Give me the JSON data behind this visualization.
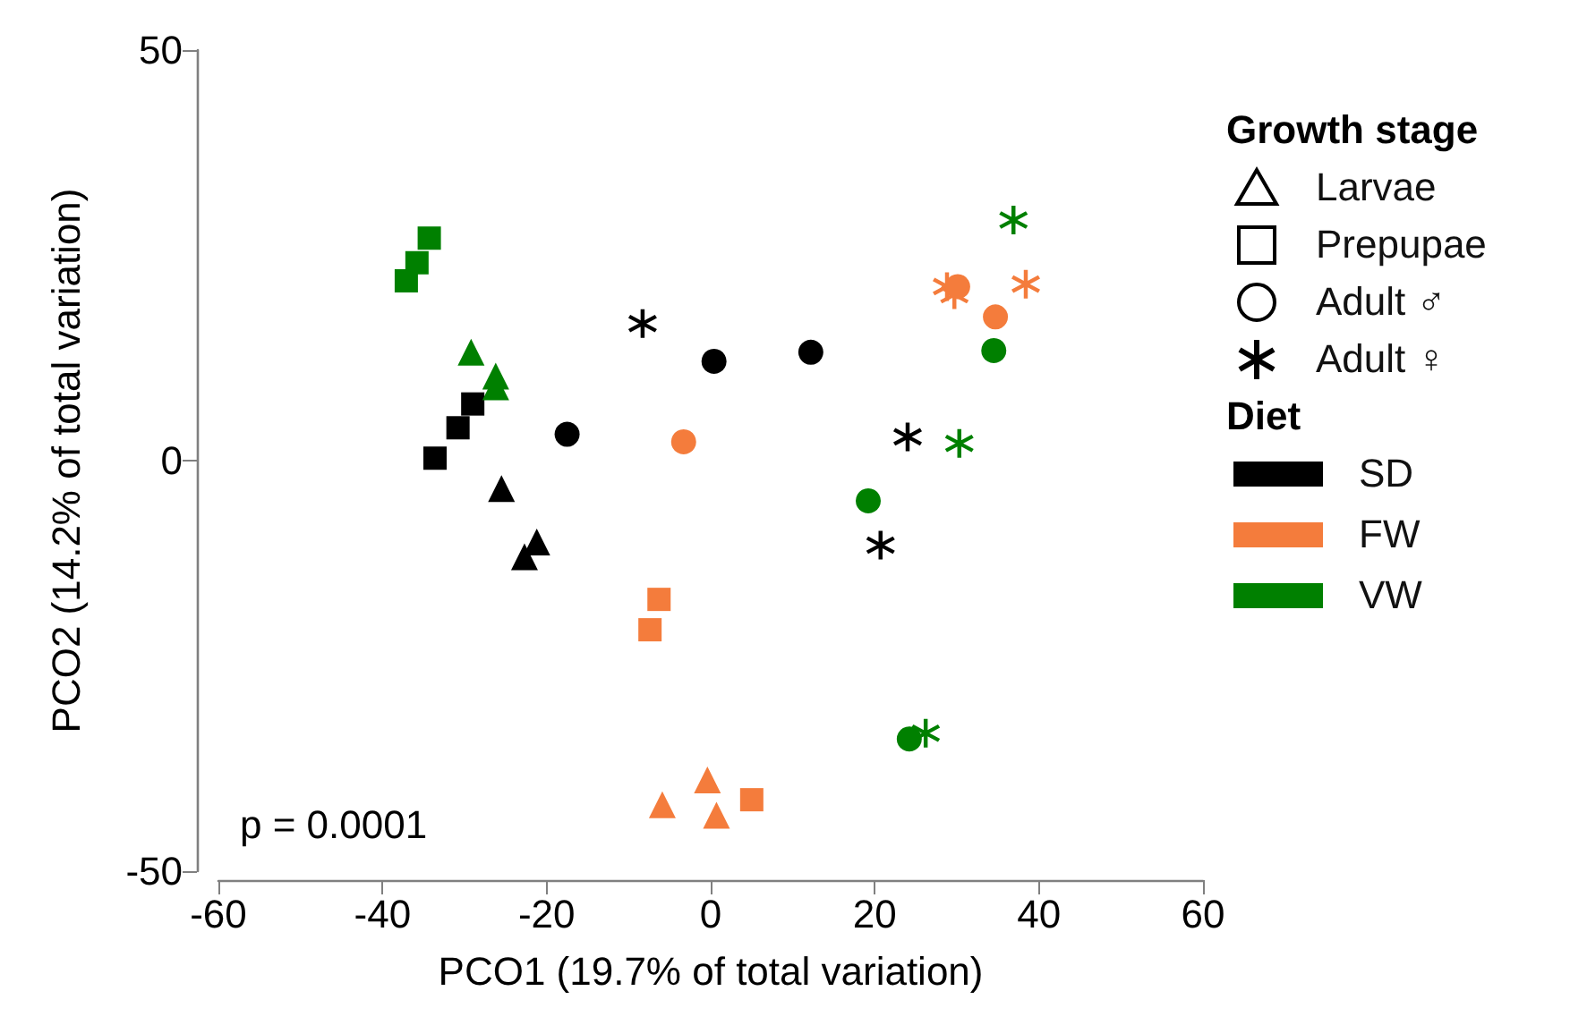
{
  "chart_data": {
    "type": "scatter",
    "xlabel": "PCO1 (19.7% of total variation)",
    "ylabel": "PCO2 (14.2% of total variation)",
    "xlim": [
      -60,
      60
    ],
    "xticks": [
      -60,
      -40,
      -20,
      0,
      20,
      40,
      60
    ],
    "ylim": [
      -50,
      50
    ],
    "yticks": [
      -50,
      0,
      50
    ],
    "grid": false,
    "annotations": [
      "Growth stage",
      "Larvae",
      "Prepupae",
      "Adult ♂",
      "Adult ♀",
      "Diet",
      "SD",
      "FW",
      "VW",
      "p = 0.0001"
    ],
    "series": [
      {
        "color": "#000000",
        "marker": "triangle",
        "x": [
          -25.5,
          -21.2,
          -22.7
        ],
        "values": [
          -3.4,
          -9.9,
          -11.7
        ]
      },
      {
        "color": "#000000",
        "marker": "square",
        "x": [
          -33.6,
          -30.8,
          -29.0
        ],
        "values": [
          0.3,
          4.0,
          6.9
        ]
      },
      {
        "color": "#000000",
        "marker": "circle",
        "x": [
          -17.5,
          0.4,
          12.2
        ],
        "values": [
          3.2,
          12.1,
          13.2
        ]
      },
      {
        "color": "#000000",
        "marker": "cross",
        "x": [
          -8.3,
          24,
          20.7
        ],
        "values": [
          16.7,
          2.9,
          -10.3
        ]
      },
      {
        "color": "#f47c3c",
        "marker": "triangle",
        "x": [
          -5.9,
          -0.4,
          0.7
        ],
        "values": [
          -41.9,
          -38.9,
          -43.2
        ]
      },
      {
        "color": "#f47c3c",
        "marker": "square",
        "x": [
          -6.3,
          -7.4,
          5.0
        ],
        "values": [
          -16.9,
          -20.6,
          -41.3
        ]
      },
      {
        "color": "#f47c3c",
        "marker": "circle",
        "x": [
          -3.3,
          30.1,
          34.7
        ],
        "values": [
          2.3,
          21.2,
          17.5
        ]
      },
      {
        "color": "#f47c3c",
        "marker": "cross",
        "x": [
          28.8,
          29.7,
          38.4
        ],
        "values": [
          21.2,
          20.2,
          21.5
        ]
      },
      {
        "color": "#008000",
        "marker": "triangle",
        "x": [
          -29.2,
          -26.2,
          -26.2
        ],
        "values": [
          13.2,
          10.3,
          9.0
        ]
      },
      {
        "color": "#008000",
        "marker": "square",
        "x": [
          -34.3,
          -35.8,
          -37.1
        ],
        "values": [
          27.1,
          24.1,
          21.9
        ]
      },
      {
        "color": "#008000",
        "marker": "circle",
        "x": [
          34.5,
          19.2,
          24.2
        ],
        "values": [
          13.4,
          -4.9,
          -33.9
        ]
      },
      {
        "color": "#008000",
        "marker": "cross",
        "x": [
          36.9,
          30.3,
          26.2
        ],
        "values": [
          29.3,
          2.1,
          -33.2
        ]
      }
    ]
  }
}
